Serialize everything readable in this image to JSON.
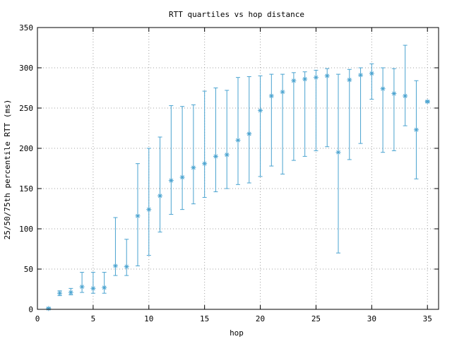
{
  "chart_data": {
    "type": "scatter",
    "title": "RTT quartiles vs hop distance",
    "xlabel": "hop",
    "ylabel": "25/50/75th percentile RTT (ms)",
    "xlim": [
      0,
      36
    ],
    "ylim": [
      0,
      350
    ],
    "xticks": [
      0,
      5,
      10,
      15,
      20,
      25,
      30,
      35
    ],
    "yticks": [
      0,
      50,
      100,
      150,
      200,
      250,
      300,
      350
    ],
    "grid": true,
    "color": "#4aa3d0",
    "points": [
      {
        "x": 1,
        "p25": 0,
        "p50": 1,
        "p75": 2
      },
      {
        "x": 2,
        "p25": 17,
        "p50": 20,
        "p75": 23
      },
      {
        "x": 3,
        "p25": 18,
        "p50": 21,
        "p75": 26
      },
      {
        "x": 4,
        "p25": 21,
        "p50": 28,
        "p75": 46
      },
      {
        "x": 5,
        "p25": 20,
        "p50": 26,
        "p75": 46
      },
      {
        "x": 6,
        "p25": 20,
        "p50": 27,
        "p75": 46
      },
      {
        "x": 7,
        "p25": 42,
        "p50": 54,
        "p75": 114
      },
      {
        "x": 8,
        "p25": 42,
        "p50": 53,
        "p75": 87
      },
      {
        "x": 9,
        "p25": 54,
        "p50": 116,
        "p75": 181
      },
      {
        "x": 10,
        "p25": 67,
        "p50": 124,
        "p75": 200
      },
      {
        "x": 11,
        "p25": 96,
        "p50": 141,
        "p75": 214
      },
      {
        "x": 12,
        "p25": 118,
        "p50": 160,
        "p75": 253
      },
      {
        "x": 13,
        "p25": 124,
        "p50": 164,
        "p75": 252
      },
      {
        "x": 14,
        "p25": 131,
        "p50": 176,
        "p75": 254
      },
      {
        "x": 15,
        "p25": 139,
        "p50": 181,
        "p75": 271
      },
      {
        "x": 16,
        "p25": 146,
        "p50": 190,
        "p75": 275
      },
      {
        "x": 17,
        "p25": 150,
        "p50": 192,
        "p75": 272
      },
      {
        "x": 18,
        "p25": 155,
        "p50": 210,
        "p75": 288
      },
      {
        "x": 19,
        "p25": 157,
        "p50": 218,
        "p75": 289
      },
      {
        "x": 20,
        "p25": 165,
        "p50": 247,
        "p75": 290
      },
      {
        "x": 21,
        "p25": 178,
        "p50": 265,
        "p75": 292
      },
      {
        "x": 22,
        "p25": 168,
        "p50": 270,
        "p75": 292
      },
      {
        "x": 23,
        "p25": 185,
        "p50": 284,
        "p75": 294
      },
      {
        "x": 24,
        "p25": 190,
        "p50": 286,
        "p75": 295
      },
      {
        "x": 25,
        "p25": 197,
        "p50": 288,
        "p75": 297
      },
      {
        "x": 26,
        "p25": 202,
        "p50": 290,
        "p75": 299
      },
      {
        "x": 27,
        "p25": 70,
        "p50": 195,
        "p75": 292
      },
      {
        "x": 28,
        "p25": 186,
        "p50": 285,
        "p75": 298
      },
      {
        "x": 29,
        "p25": 206,
        "p50": 291,
        "p75": 300
      },
      {
        "x": 30,
        "p25": 261,
        "p50": 293,
        "p75": 305
      },
      {
        "x": 31,
        "p25": 195,
        "p50": 274,
        "p75": 300
      },
      {
        "x": 32,
        "p25": 197,
        "p50": 268,
        "p75": 299
      },
      {
        "x": 33,
        "p25": 228,
        "p50": 265,
        "p75": 328
      },
      {
        "x": 34,
        "p25": 162,
        "p50": 223,
        "p75": 284
      },
      {
        "x": 35,
        "p25": 257,
        "p50": 258,
        "p75": 259
      }
    ]
  }
}
